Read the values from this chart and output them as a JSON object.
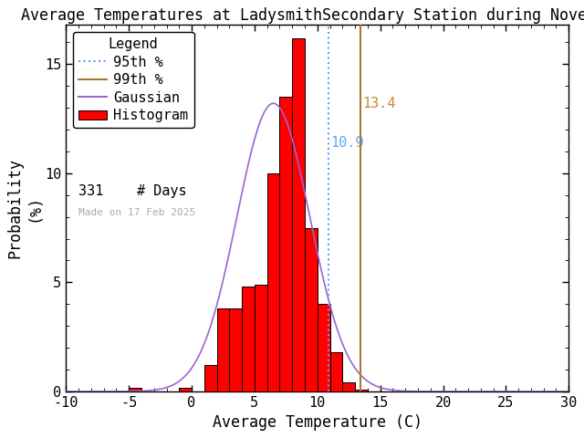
{
  "title": "Average Temperatures at LadysmithSecondary Station during Novembe",
  "xlabel": "Average Temperature (C)",
  "ylabel_line1": "Probability",
  "ylabel_line2": "(%)",
  "xlim": [
    -10,
    30
  ],
  "ylim": [
    0,
    16.8
  ],
  "bin_starts": [
    -5,
    -1,
    0,
    1,
    2,
    3,
    4,
    5,
    6,
    7,
    8,
    9,
    10,
    11,
    12,
    13
  ],
  "bin_heights": [
    0.15,
    0.15,
    0.0,
    1.2,
    3.8,
    3.8,
    4.8,
    4.9,
    10.0,
    13.5,
    16.2,
    7.5,
    4.0,
    1.8,
    0.4,
    0.1
  ],
  "bin_width": 1.0,
  "gaussian_mean": 6.5,
  "gaussian_std": 2.9,
  "gaussian_peak": 13.2,
  "pct95": 10.9,
  "pct99": 13.4,
  "n_days": 331,
  "date_label": "Made on 17 Feb 2025",
  "bar_color": "#ff0000",
  "bar_edgecolor": "#000000",
  "gaussian_color": "#9966cc",
  "pct95_color": "#6699ff",
  "pct99_color": "#aa7733",
  "pct95_label_color": "#55aaff",
  "pct99_label_color": "#cc8833",
  "title_fontsize": 12,
  "axis_fontsize": 12,
  "tick_fontsize": 11,
  "legend_fontsize": 11,
  "yticks": [
    0,
    5,
    10,
    15
  ],
  "xticks": [
    -10,
    -5,
    0,
    5,
    10,
    15,
    20,
    25,
    30
  ],
  "background_color": "#ffffff"
}
